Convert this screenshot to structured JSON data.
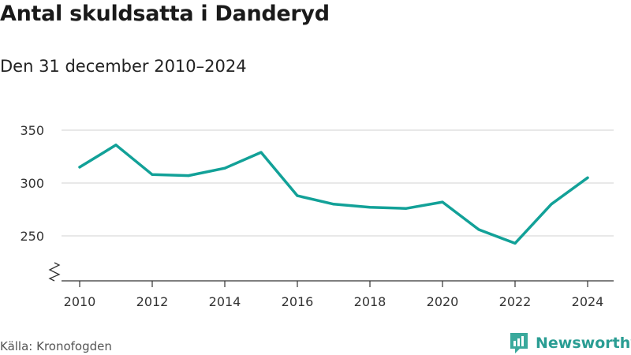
{
  "chart_data": {
    "type": "line",
    "title": "Antal skuldsatta i Danderyd",
    "subtitle": "Den 31 december 2010–2024",
    "xlabel": "",
    "ylabel": "",
    "x": [
      2010,
      2011,
      2012,
      2013,
      2014,
      2015,
      2016,
      2017,
      2018,
      2019,
      2020,
      2021,
      2022,
      2023,
      2024
    ],
    "series": [
      {
        "name": "Antal skuldsatta",
        "values": [
          315,
          336,
          308,
          307,
          314,
          329,
          288,
          280,
          277,
          276,
          282,
          256,
          243,
          280,
          305
        ]
      }
    ],
    "yticks": [
      250,
      300,
      350
    ],
    "xticks": [
      2010,
      2012,
      2014,
      2016,
      2018,
      2020,
      2022,
      2024
    ],
    "ylim": [
      205,
      350
    ],
    "grid": true,
    "axis_break": true,
    "line_color": "#12a198"
  },
  "footer": {
    "source": "Källa: Kronofogden",
    "brand": "Newsworthy"
  }
}
